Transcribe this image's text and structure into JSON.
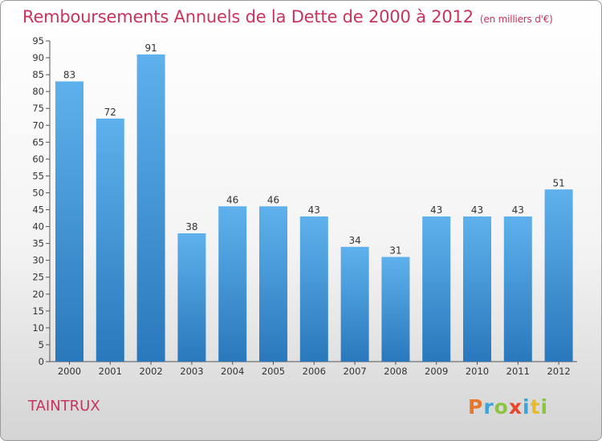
{
  "header": {
    "title": "Remboursements Annuels de la Dette de 2000 à 2012",
    "subtitle": "(en milliers d'€)"
  },
  "footer": {
    "town": "TAINTRUX",
    "logo_letters": [
      "P",
      "r",
      "o",
      "x",
      "i",
      "t",
      "i"
    ],
    "logo_colors": [
      "#e8762b",
      "#3ba4d8",
      "#8bc43f",
      "#e8452b",
      "#3ba4d8",
      "#e8b92b",
      "#8bc43f"
    ]
  },
  "colors": {
    "bar_light": "#5eb1ec",
    "bar_dark": "#2a78bc",
    "title": "#c8345c"
  },
  "chart_data": {
    "type": "bar",
    "categories": [
      "2000",
      "2001",
      "2002",
      "2003",
      "2004",
      "2005",
      "2006",
      "2007",
      "2008",
      "2009",
      "2010",
      "2011",
      "2012"
    ],
    "values": [
      83,
      72,
      91,
      38,
      46,
      46,
      43,
      34,
      31,
      43,
      43,
      43,
      51
    ],
    "data_labels": [
      "83",
      "72",
      "91",
      "38",
      "46",
      "46",
      "43",
      "34",
      "31",
      "43",
      "43",
      "43",
      "51"
    ],
    "ylim": [
      0,
      95
    ],
    "yticks": [
      "0",
      "5",
      "10",
      "15",
      "20",
      "25",
      "30",
      "35",
      "40",
      "45",
      "50",
      "55",
      "60",
      "65",
      "70",
      "75",
      "80",
      "85",
      "90",
      "95"
    ],
    "grid": false,
    "legend": "none"
  }
}
